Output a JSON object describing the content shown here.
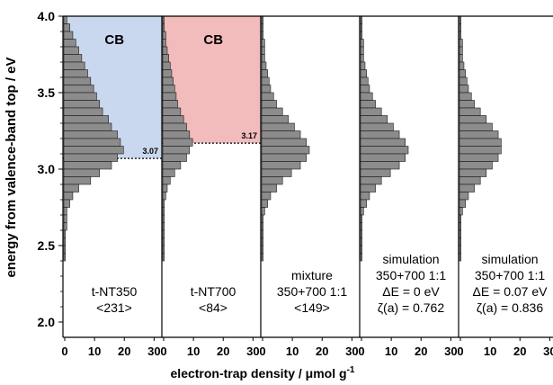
{
  "chart_data": {
    "type": "bar",
    "orientation": "horizontal",
    "ylabel": "energy from valence-band top / eV",
    "xlabel": "electron-trap density / μmol g",
    "xlabel_superscript": "-1",
    "ylim": [
      1.9,
      4.0
    ],
    "xlim": [
      0,
      32
    ],
    "yticks": [
      "4.0",
      "3.5",
      "3.0",
      "2.5",
      "2.0"
    ],
    "ytick_values": [
      4.0,
      3.5,
      3.0,
      2.5,
      2.0
    ],
    "xticks": [
      "0",
      "10",
      "20",
      "30"
    ],
    "xtick_values": [
      0,
      10,
      20,
      30
    ],
    "bin_width": 0.05,
    "bin_energies": [
      3.975,
      3.925,
      3.875,
      3.825,
      3.775,
      3.725,
      3.675,
      3.625,
      3.575,
      3.525,
      3.475,
      3.425,
      3.375,
      3.325,
      3.275,
      3.225,
      3.175,
      3.125,
      3.075,
      3.025,
      2.975,
      2.925,
      2.875,
      2.825,
      2.775,
      2.725,
      2.675,
      2.625,
      2.575,
      2.525,
      2.475,
      2.425
    ],
    "series": [
      {
        "panel": 1,
        "label_lines": [
          "t-NT350",
          "<231>"
        ],
        "band": {
          "label": "CB",
          "edge": 3.07,
          "edge_label": "3.07",
          "color": "#c9d8ee"
        },
        "values": [
          1,
          2,
          3,
          4,
          5,
          6,
          7,
          8,
          9,
          10,
          11,
          12,
          13,
          15,
          16,
          18,
          19,
          20,
          18,
          16,
          12,
          9,
          5,
          3,
          2,
          1,
          1,
          1,
          0.5,
          0.5,
          0.5,
          0.5
        ]
      },
      {
        "panel": 2,
        "label_lines": [
          "t-NT700",
          "<84>"
        ],
        "band": {
          "label": "CB",
          "edge": 3.17,
          "edge_label": "3.17",
          "color": "#f2bcbc"
        },
        "values": [
          0.5,
          0.5,
          1,
          1,
          1.5,
          2,
          2.5,
          3,
          3.5,
          4,
          4.5,
          5,
          6,
          7,
          8,
          9,
          10,
          9,
          8,
          6,
          4,
          2.5,
          1.5,
          1,
          0.5,
          0.5,
          0.5,
          0.5,
          0.5,
          0.5,
          0.5,
          0.5
        ]
      },
      {
        "panel": 3,
        "label_lines": [
          "mixture",
          "350+700 1:1",
          "<149>"
        ],
        "values": [
          0.5,
          0.5,
          0.5,
          1,
          1,
          1,
          1.5,
          2,
          2.5,
          3,
          4,
          5,
          7,
          9,
          11,
          13,
          15,
          16,
          15,
          13,
          10,
          7,
          5,
          3,
          2,
          1,
          0.5,
          0.5,
          0.5,
          0.5,
          0.5,
          0.5
        ]
      },
      {
        "panel": 4,
        "label_lines": [
          "simulation",
          "350+700 1:1",
          "ΔE = 0 eV",
          "ζ(a) = 0.762"
        ],
        "values": [
          0.5,
          0.5,
          0.5,
          1,
          1,
          1,
          1.5,
          2,
          2.5,
          3,
          4,
          5,
          7,
          9,
          11,
          13,
          15,
          16,
          15,
          13,
          10,
          7,
          5,
          3,
          2,
          1,
          0.5,
          0.5,
          0.5,
          0.5,
          0.5,
          0.5
        ]
      },
      {
        "panel": 5,
        "label_lines": [
          "simulation",
          "350+700 1:1",
          "ΔE = 0.07 eV",
          "ζ(a) = 0.836"
        ],
        "values": [
          0.5,
          0.5,
          0.5,
          1,
          1,
          1,
          1.5,
          2,
          2.5,
          3,
          4,
          5,
          7,
          9,
          11,
          13,
          14,
          14,
          13,
          11,
          9,
          7,
          5,
          3,
          2,
          1,
          0.5,
          0.5,
          0.5,
          0.5,
          0.5,
          0.5
        ]
      }
    ],
    "colors": {
      "bar_fill": "#8c8c8c",
      "bar_stroke": "#1a1a1a",
      "axis": "#000000"
    }
  }
}
